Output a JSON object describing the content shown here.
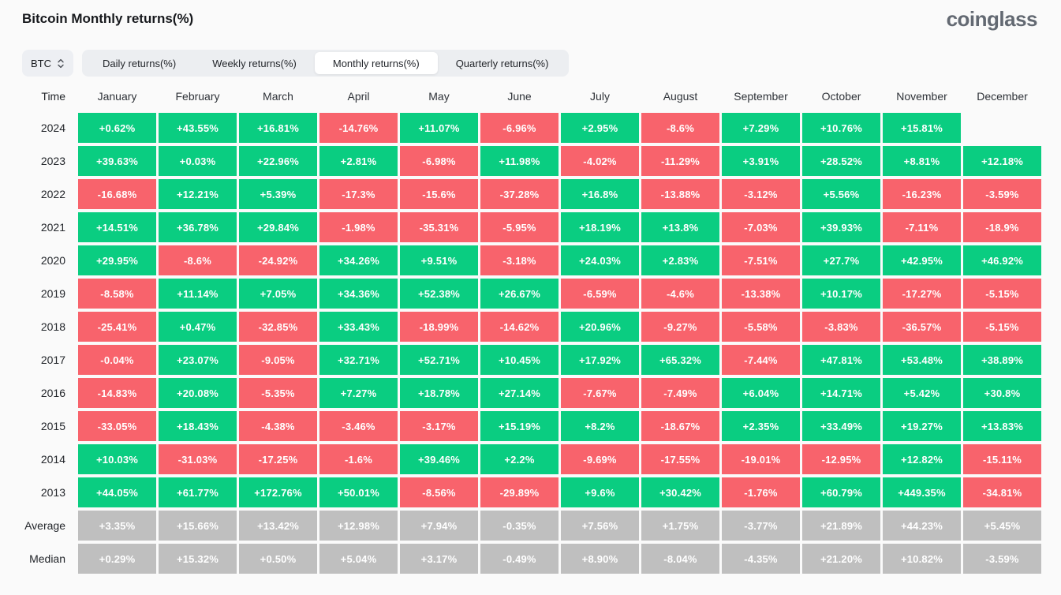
{
  "header": {
    "title": "Bitcoin Monthly returns(%)",
    "logo_text": "coinglass"
  },
  "controls": {
    "symbol_select": {
      "value": "BTC"
    },
    "tabs": [
      {
        "label": "Daily returns(%)",
        "selected": false
      },
      {
        "label": "Weekly returns(%)",
        "selected": false
      },
      {
        "label": "Monthly returns(%)",
        "selected": true
      },
      {
        "label": "Quarterly returns(%)",
        "selected": false
      }
    ]
  },
  "table": {
    "time_header": "Time",
    "months": [
      "January",
      "February",
      "March",
      "April",
      "May",
      "June",
      "July",
      "August",
      "September",
      "October",
      "November",
      "December"
    ],
    "rows": [
      {
        "time": "2024",
        "type": "year",
        "values": [
          "+0.62%",
          "+43.55%",
          "+16.81%",
          "-14.76%",
          "+11.07%",
          "-6.96%",
          "+2.95%",
          "-8.6%",
          "+7.29%",
          "+10.76%",
          "+15.81%",
          ""
        ]
      },
      {
        "time": "2023",
        "type": "year",
        "values": [
          "+39.63%",
          "+0.03%",
          "+22.96%",
          "+2.81%",
          "-6.98%",
          "+11.98%",
          "-4.02%",
          "-11.29%",
          "+3.91%",
          "+28.52%",
          "+8.81%",
          "+12.18%"
        ]
      },
      {
        "time": "2022",
        "type": "year",
        "values": [
          "-16.68%",
          "+12.21%",
          "+5.39%",
          "-17.3%",
          "-15.6%",
          "-37.28%",
          "+16.8%",
          "-13.88%",
          "-3.12%",
          "+5.56%",
          "-16.23%",
          "-3.59%"
        ]
      },
      {
        "time": "2021",
        "type": "year",
        "values": [
          "+14.51%",
          "+36.78%",
          "+29.84%",
          "-1.98%",
          "-35.31%",
          "-5.95%",
          "+18.19%",
          "+13.8%",
          "-7.03%",
          "+39.93%",
          "-7.11%",
          "-18.9%"
        ]
      },
      {
        "time": "2020",
        "type": "year",
        "values": [
          "+29.95%",
          "-8.6%",
          "-24.92%",
          "+34.26%",
          "+9.51%",
          "-3.18%",
          "+24.03%",
          "+2.83%",
          "-7.51%",
          "+27.7%",
          "+42.95%",
          "+46.92%"
        ]
      },
      {
        "time": "2019",
        "type": "year",
        "values": [
          "-8.58%",
          "+11.14%",
          "+7.05%",
          "+34.36%",
          "+52.38%",
          "+26.67%",
          "-6.59%",
          "-4.6%",
          "-13.38%",
          "+10.17%",
          "-17.27%",
          "-5.15%"
        ]
      },
      {
        "time": "2018",
        "type": "year",
        "values": [
          "-25.41%",
          "+0.47%",
          "-32.85%",
          "+33.43%",
          "-18.99%",
          "-14.62%",
          "+20.96%",
          "-9.27%",
          "-5.58%",
          "-3.83%",
          "-36.57%",
          "-5.15%"
        ]
      },
      {
        "time": "2017",
        "type": "year",
        "values": [
          "-0.04%",
          "+23.07%",
          "-9.05%",
          "+32.71%",
          "+52.71%",
          "+10.45%",
          "+17.92%",
          "+65.32%",
          "-7.44%",
          "+47.81%",
          "+53.48%",
          "+38.89%"
        ]
      },
      {
        "time": "2016",
        "type": "year",
        "values": [
          "-14.83%",
          "+20.08%",
          "-5.35%",
          "+7.27%",
          "+18.78%",
          "+27.14%",
          "-7.67%",
          "-7.49%",
          "+6.04%",
          "+14.71%",
          "+5.42%",
          "+30.8%"
        ]
      },
      {
        "time": "2015",
        "type": "year",
        "values": [
          "-33.05%",
          "+18.43%",
          "-4.38%",
          "-3.46%",
          "-3.17%",
          "+15.19%",
          "+8.2%",
          "-18.67%",
          "+2.35%",
          "+33.49%",
          "+19.27%",
          "+13.83%"
        ]
      },
      {
        "time": "2014",
        "type": "year",
        "values": [
          "+10.03%",
          "-31.03%",
          "-17.25%",
          "-1.6%",
          "+39.46%",
          "+2.2%",
          "-9.69%",
          "-17.55%",
          "-19.01%",
          "-12.95%",
          "+12.82%",
          "-15.11%"
        ]
      },
      {
        "time": "2013",
        "type": "year",
        "values": [
          "+44.05%",
          "+61.77%",
          "+172.76%",
          "+50.01%",
          "-8.56%",
          "-29.89%",
          "+9.6%",
          "+30.42%",
          "-1.76%",
          "+60.79%",
          "+449.35%",
          "-34.81%"
        ]
      },
      {
        "time": "Average",
        "type": "summary",
        "values": [
          "+3.35%",
          "+15.66%",
          "+13.42%",
          "+12.98%",
          "+7.94%",
          "-0.35%",
          "+7.56%",
          "+1.75%",
          "-3.77%",
          "+21.89%",
          "+44.23%",
          "+5.45%"
        ]
      },
      {
        "time": "Median",
        "type": "summary",
        "values": [
          "+0.29%",
          "+15.32%",
          "+0.50%",
          "+5.04%",
          "+3.17%",
          "-0.49%",
          "+8.90%",
          "-8.04%",
          "-4.35%",
          "+21.20%",
          "+10.82%",
          "-3.59%"
        ]
      }
    ]
  },
  "colors": {
    "positive": "#0acd81",
    "negative": "#f8636c",
    "summary": "#bfbfbf",
    "page_background": "#fafafa"
  }
}
